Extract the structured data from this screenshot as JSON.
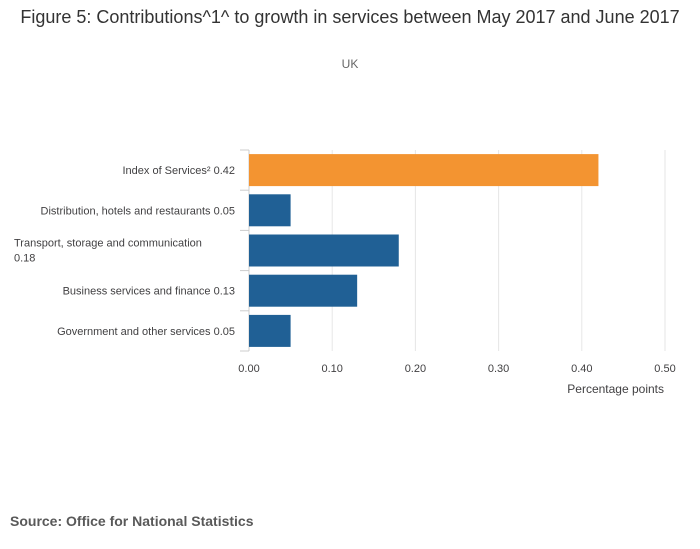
{
  "title": "Figure 5: Contributions^1^ to growth in services between May 2017 and June 2017",
  "subtitle": "UK",
  "source": "Source: Office for National Statistics",
  "chart_data": {
    "type": "bar",
    "orientation": "horizontal",
    "categories": [
      "Index of Services² 0.42",
      "Distribution, hotels and restaurants 0.05",
      "Transport, storage and communication 0.18",
      "Business services and finance 0.13",
      "Government and other services 0.05"
    ],
    "category_lines": [
      [
        "Index of Services² 0.42"
      ],
      [
        "Distribution, hotels and restaurants 0.05"
      ],
      [
        "Transport, storage and communication",
        "0.18"
      ],
      [
        "Business services and finance 0.13"
      ],
      [
        "Government and other services 0.05"
      ]
    ],
    "values": [
      0.42,
      0.05,
      0.18,
      0.13,
      0.05
    ],
    "bar_colors": [
      "#f39431",
      "#206095",
      "#206095",
      "#206095",
      "#206095"
    ],
    "xlabel": "Percentage points",
    "ylabel": "",
    "xlim": [
      0,
      0.5
    ],
    "xticks": [
      "0.00",
      "0.10",
      "0.20",
      "0.30",
      "0.40",
      "0.50"
    ],
    "grid": true,
    "colors": {
      "highlight": "#f39431",
      "bar": "#206095",
      "grid": "#e6e6e6"
    }
  }
}
